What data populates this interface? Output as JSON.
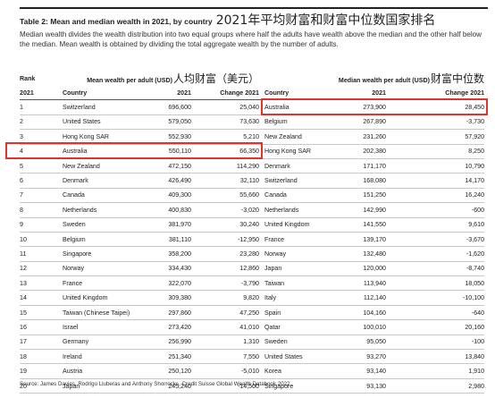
{
  "header": {
    "title": "Table 2: Mean and median wealth in 2021, by country",
    "title_cn": "2021年平均财富和财富中位数国家排名",
    "description": "Median wealth divides the wealth distribution into two equal groups where half the adults have wealth above the median and the other half below the median. Mean wealth is obtained by dividing the total aggregate wealth by the number of adults."
  },
  "table": {
    "rank_label": "Rank",
    "mean_group": "Mean wealth per adult (USD)",
    "mean_group_cn": "人均财富（美元）",
    "median_group": "Median wealth per adult (USD)",
    "median_group_cn": "财富中位数",
    "columns": [
      "2021",
      "Country",
      "2021",
      "Change 2021",
      "Country",
      "2021",
      "Change 2021"
    ],
    "rows": [
      [
        "1",
        "Switzerland",
        "696,600",
        "25,040",
        "Australia",
        "273,900",
        "28,450"
      ],
      [
        "2",
        "United States",
        "579,050",
        "73,630",
        "Belgium",
        "267,890",
        "-3,730"
      ],
      [
        "3",
        "Hong Kong SAR",
        "552,930",
        "5,210",
        "New Zealand",
        "231,260",
        "57,920"
      ],
      [
        "4",
        "Australia",
        "550,110",
        "66,350",
        "Hong Kong SAR",
        "202,380",
        "8,250"
      ],
      [
        "5",
        "New Zealand",
        "472,150",
        "114,290",
        "Denmark",
        "171,170",
        "10,790"
      ],
      [
        "6",
        "Denmark",
        "426,490",
        "32,110",
        "Switzerland",
        "168,080",
        "14,170"
      ],
      [
        "7",
        "Canada",
        "409,300",
        "55,660",
        "Canada",
        "151,250",
        "16,240"
      ],
      [
        "8",
        "Netherlands",
        "400,830",
        "-3,020",
        "Netherlands",
        "142,990",
        "-600"
      ],
      [
        "9",
        "Sweden",
        "381,970",
        "30,240",
        "United Kingdom",
        "141,550",
        "9,610"
      ],
      [
        "10",
        "Belgium",
        "381,110",
        "-12,950",
        "France",
        "139,170",
        "-3,670"
      ],
      [
        "11",
        "Singapore",
        "358,200",
        "23,280",
        "Norway",
        "132,480",
        "-1,620"
      ],
      [
        "12",
        "Norway",
        "334,430",
        "12,860",
        "Japan",
        "120,000",
        "-8,740"
      ],
      [
        "13",
        "France",
        "322,070",
        "-3,790",
        "Taiwan",
        "113,940",
        "18,050"
      ],
      [
        "14",
        "United Kingdom",
        "309,380",
        "9,820",
        "Italy",
        "112,140",
        "-10,100"
      ],
      [
        "15",
        "Taiwan (Chinese Taipei)",
        "297,860",
        "47,250",
        "Spain",
        "104,160",
        "-640"
      ],
      [
        "16",
        "Israel",
        "273,420",
        "41,010",
        "Qatar",
        "100,010",
        "20,160"
      ],
      [
        "17",
        "Germany",
        "256,990",
        "1,310",
        "Sweden",
        "95,050",
        "-100"
      ],
      [
        "18",
        "Ireland",
        "251,340",
        "7,550",
        "United States",
        "93,270",
        "13,840"
      ],
      [
        "19",
        "Austria",
        "250,120",
        "-5,010",
        "Korea",
        "93,140",
        "1,910"
      ],
      [
        "20",
        "Japan",
        "245,240",
        "-14,500",
        "Singapore",
        "93,130",
        "2,980"
      ]
    ],
    "highlights": [
      {
        "row": 0,
        "side": "median"
      },
      {
        "row": 3,
        "side": "mean"
      }
    ],
    "highlight_color": "#e3312b"
  },
  "source": "Source: James Davies, Rodrigo Lluberas and Anthony Shorrocks, Credit Suisse Global Wealth Databook 2022"
}
